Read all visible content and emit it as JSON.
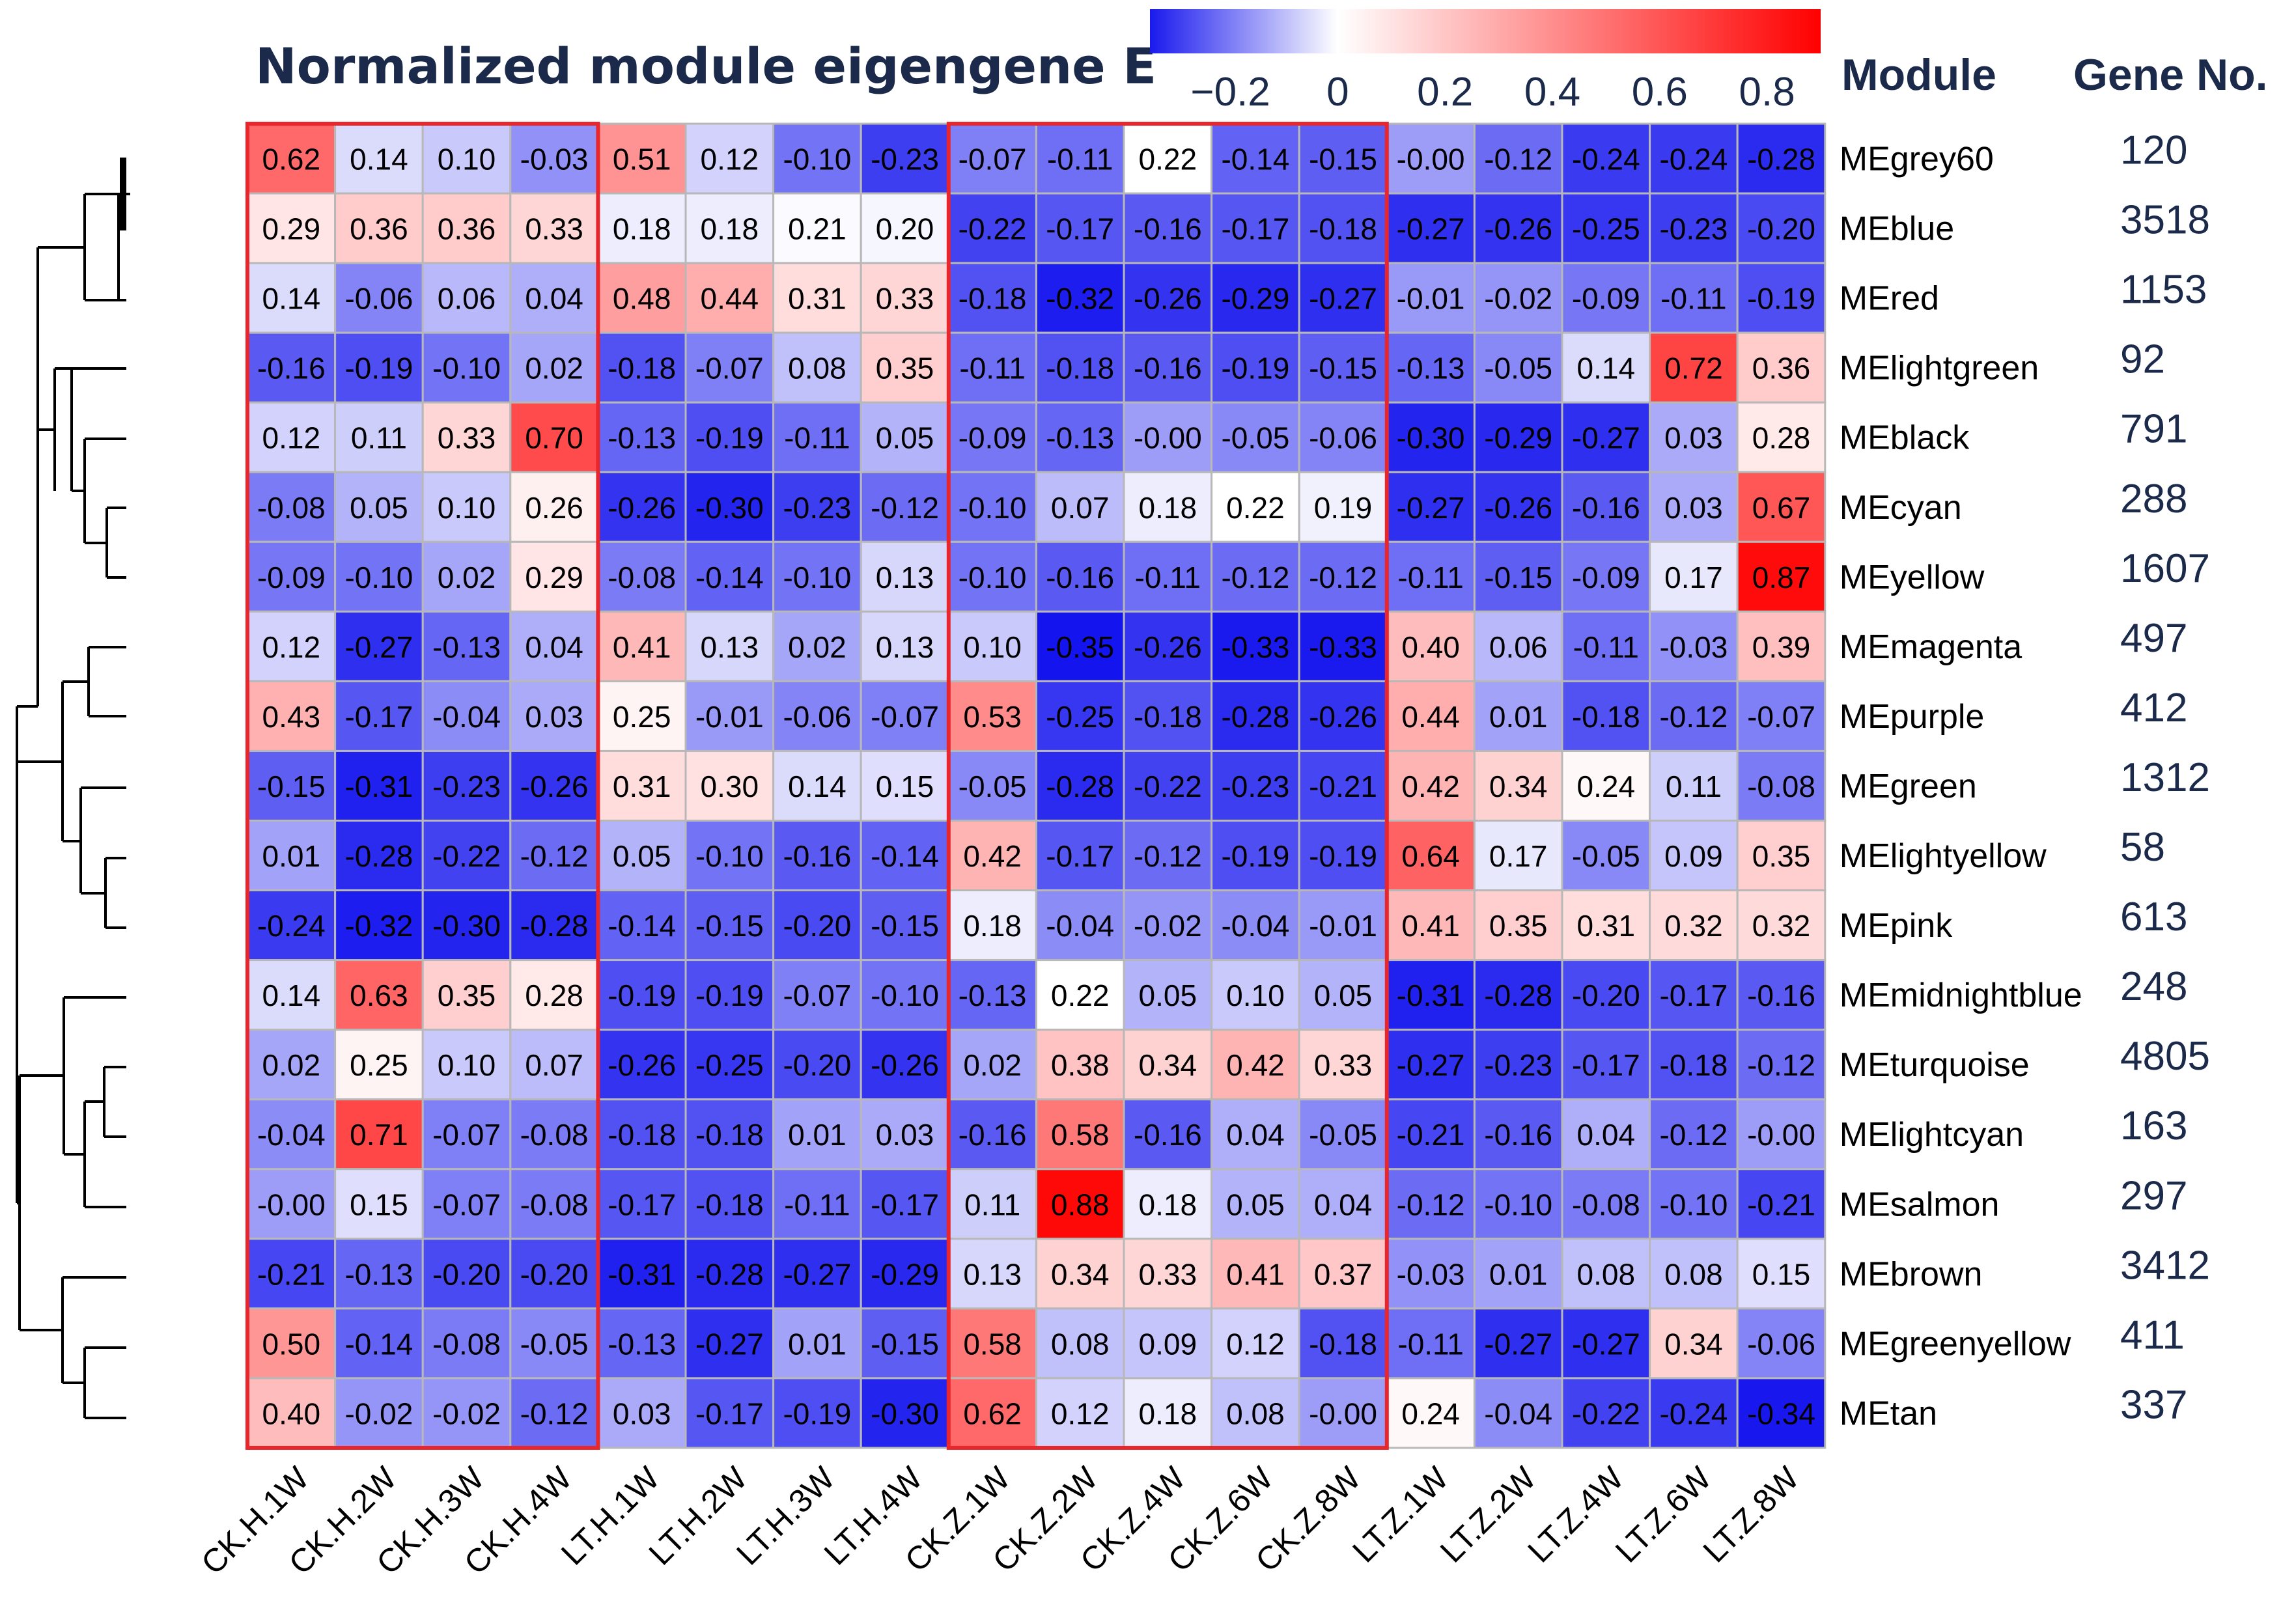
{
  "chart_data": {
    "type": "heatmap",
    "title": "Normalized module eigengene E",
    "column_header_module": "Module",
    "column_header_gene_no": "Gene No.",
    "colorbar": {
      "ticks": [
        "−0.2",
        "0",
        "0.2",
        "0.4",
        "0.6",
        "0.8"
      ],
      "tick_values": [
        -0.2,
        0,
        0.2,
        0.4,
        0.6,
        0.8
      ],
      "range": [
        -0.35,
        0.9
      ],
      "colors": [
        "#0000ff",
        "#ffffff",
        "#ff0000"
      ]
    },
    "columns": [
      "CK.H.1W",
      "CK.H.2W",
      "CK.H.3W",
      "CK.H.4W",
      "LT.H.1W",
      "LT.H.2W",
      "LT.H.3W",
      "LT.H.4W",
      "CK.Z.1W",
      "CK.Z.2W",
      "CK.Z.4W",
      "CK.Z.6W",
      "CK.Z.8W",
      "LT.Z.1W",
      "LT.Z.2W",
      "LT.Z.4W",
      "LT.Z.6W",
      "LT.Z.8W"
    ],
    "rows": [
      "MEgrey60",
      "MEblue",
      "MEred",
      "MElightgreen",
      "MEblack",
      "MEcyan",
      "MEyellow",
      "MEmagenta",
      "MEpurple",
      "MEgreen",
      "MElightyellow",
      "MEpink",
      "MEmidnightblue",
      "MEturquoise",
      "MElightcyan",
      "MEsalmon",
      "MEbrown",
      "MEgreenyellow",
      "MEtan"
    ],
    "gene_counts": [
      "120",
      "3518",
      "1153",
      "92",
      "791",
      "288",
      "1607",
      "497",
      "412",
      "1312",
      "58",
      "613",
      "248",
      "4805",
      "163",
      "297",
      "3412",
      "411",
      "337"
    ],
    "values": [
      [
        "0.62",
        "0.14",
        "0.10",
        "-0.03",
        "0.51",
        "0.12",
        "-0.10",
        "-0.23",
        "-0.07",
        "-0.11",
        "0.22",
        "-0.14",
        "-0.15",
        "-0.00",
        "-0.12",
        "-0.24",
        "-0.24",
        "-0.28"
      ],
      [
        "0.29",
        "0.36",
        "0.36",
        "0.33",
        "0.18",
        "0.18",
        "0.21",
        "0.20",
        "-0.22",
        "-0.17",
        "-0.16",
        "-0.17",
        "-0.18",
        "-0.27",
        "-0.26",
        "-0.25",
        "-0.23",
        "-0.20"
      ],
      [
        "0.14",
        "-0.06",
        "0.06",
        "0.04",
        "0.48",
        "0.44",
        "0.31",
        "0.33",
        "-0.18",
        "-0.32",
        "-0.26",
        "-0.29",
        "-0.27",
        "-0.01",
        "-0.02",
        "-0.09",
        "-0.11",
        "-0.19"
      ],
      [
        "-0.16",
        "-0.19",
        "-0.10",
        "0.02",
        "-0.18",
        "-0.07",
        "0.08",
        "0.35",
        "-0.11",
        "-0.18",
        "-0.16",
        "-0.19",
        "-0.15",
        "-0.13",
        "-0.05",
        "0.14",
        "0.72",
        "0.36"
      ],
      [
        "0.12",
        "0.11",
        "0.33",
        "0.70",
        "-0.13",
        "-0.19",
        "-0.11",
        "0.05",
        "-0.09",
        "-0.13",
        "-0.00",
        "-0.05",
        "-0.06",
        "-0.30",
        "-0.29",
        "-0.27",
        "0.03",
        "0.28"
      ],
      [
        "-0.08",
        "0.05",
        "0.10",
        "0.26",
        "-0.26",
        "-0.30",
        "-0.23",
        "-0.12",
        "-0.10",
        "0.07",
        "0.18",
        "0.22",
        "0.19",
        "-0.27",
        "-0.26",
        "-0.16",
        "0.03",
        "0.67"
      ],
      [
        "-0.09",
        "-0.10",
        "0.02",
        "0.29",
        "-0.08",
        "-0.14",
        "-0.10",
        "0.13",
        "-0.10",
        "-0.16",
        "-0.11",
        "-0.12",
        "-0.12",
        "-0.11",
        "-0.15",
        "-0.09",
        "0.17",
        "0.87"
      ],
      [
        "0.12",
        "-0.27",
        "-0.13",
        "0.04",
        "0.41",
        "0.13",
        "0.02",
        "0.13",
        "0.10",
        "-0.35",
        "-0.26",
        "-0.33",
        "-0.33",
        "0.40",
        "0.06",
        "-0.11",
        "-0.03",
        "0.39"
      ],
      [
        "0.43",
        "-0.17",
        "-0.04",
        "0.03",
        "0.25",
        "-0.01",
        "-0.06",
        "-0.07",
        "0.53",
        "-0.25",
        "-0.18",
        "-0.28",
        "-0.26",
        "0.44",
        "0.01",
        "-0.18",
        "-0.12",
        "-0.07"
      ],
      [
        "-0.15",
        "-0.31",
        "-0.23",
        "-0.26",
        "0.31",
        "0.30",
        "0.14",
        "0.15",
        "-0.05",
        "-0.28",
        "-0.22",
        "-0.23",
        "-0.21",
        "0.42",
        "0.34",
        "0.24",
        "0.11",
        "-0.08"
      ],
      [
        "0.01",
        "-0.28",
        "-0.22",
        "-0.12",
        "0.05",
        "-0.10",
        "-0.16",
        "-0.14",
        "0.42",
        "-0.17",
        "-0.12",
        "-0.19",
        "-0.19",
        "0.64",
        "0.17",
        "-0.05",
        "0.09",
        "0.35"
      ],
      [
        "-0.24",
        "-0.32",
        "-0.30",
        "-0.28",
        "-0.14",
        "-0.15",
        "-0.20",
        "-0.15",
        "0.18",
        "-0.04",
        "-0.02",
        "-0.04",
        "-0.01",
        "0.41",
        "0.35",
        "0.31",
        "0.32",
        "0.32"
      ],
      [
        "0.14",
        "0.63",
        "0.35",
        "0.28",
        "-0.19",
        "-0.19",
        "-0.07",
        "-0.10",
        "-0.13",
        "0.22",
        "0.05",
        "0.10",
        "0.05",
        "-0.31",
        "-0.28",
        "-0.20",
        "-0.17",
        "-0.16"
      ],
      [
        "0.02",
        "0.25",
        "0.10",
        "0.07",
        "-0.26",
        "-0.25",
        "-0.20",
        "-0.26",
        "0.02",
        "0.38",
        "0.34",
        "0.42",
        "0.33",
        "-0.27",
        "-0.23",
        "-0.17",
        "-0.18",
        "-0.12"
      ],
      [
        "-0.04",
        "0.71",
        "-0.07",
        "-0.08",
        "-0.18",
        "-0.18",
        "0.01",
        "0.03",
        "-0.16",
        "0.58",
        "-0.16",
        "0.04",
        "-0.05",
        "-0.21",
        "-0.16",
        "0.04",
        "-0.12",
        "-0.00"
      ],
      [
        "-0.00",
        "0.15",
        "-0.07",
        "-0.08",
        "-0.17",
        "-0.18",
        "-0.11",
        "-0.17",
        "0.11",
        "0.88",
        "0.18",
        "0.05",
        "0.04",
        "-0.12",
        "-0.10",
        "-0.08",
        "-0.10",
        "-0.21"
      ],
      [
        "-0.21",
        "-0.13",
        "-0.20",
        "-0.20",
        "-0.31",
        "-0.28",
        "-0.27",
        "-0.29",
        "0.13",
        "0.34",
        "0.33",
        "0.41",
        "0.37",
        "-0.03",
        "0.01",
        "0.08",
        "0.08",
        "0.15"
      ],
      [
        "0.50",
        "-0.14",
        "-0.08",
        "-0.05",
        "-0.13",
        "-0.27",
        "0.01",
        "-0.15",
        "0.58",
        "0.08",
        "0.09",
        "0.12",
        "-0.18",
        "-0.11",
        "-0.27",
        "-0.27",
        "0.34",
        "-0.06"
      ],
      [
        "0.40",
        "-0.02",
        "-0.02",
        "-0.12",
        "0.03",
        "-0.17",
        "-0.19",
        "-0.30",
        "0.62",
        "0.12",
        "0.18",
        "0.08",
        "-0.00",
        "0.24",
        "-0.04",
        "-0.22",
        "-0.24",
        "-0.34"
      ]
    ],
    "highlight_groups": [
      {
        "columns": [
          "CK.H.1W",
          "CK.H.4W"
        ],
        "color": "#e8262b"
      },
      {
        "columns": [
          "CK.Z.1W",
          "CK.Z.8W"
        ],
        "color": "#e8262b"
      }
    ],
    "dendrogram": "row clustering tree (left)"
  }
}
